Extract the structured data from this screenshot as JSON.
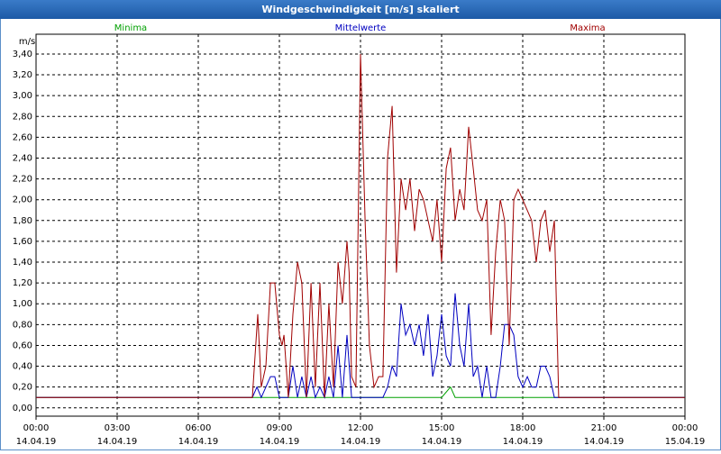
{
  "chart_data": {
    "type": "line",
    "title": "Windgeschwindigkeit [m/s] skaliert",
    "ylabel": "m/s",
    "xlim": [
      0,
      24
    ],
    "xticks": [
      {
        "value": 0,
        "label": [
          "00:00",
          "14.04.19"
        ]
      },
      {
        "value": 3,
        "label": [
          "03:00",
          "14.04.19"
        ]
      },
      {
        "value": 6,
        "label": [
          "06:00",
          "14.04.19"
        ]
      },
      {
        "value": 9,
        "label": [
          "09:00",
          "14.04.19"
        ]
      },
      {
        "value": 12,
        "label": [
          "12:00",
          "14.04.19"
        ]
      },
      {
        "value": 15,
        "label": [
          "15:00",
          "14.04.19"
        ]
      },
      {
        "value": 18,
        "label": [
          "18:00",
          "14.04.19"
        ]
      },
      {
        "value": 21,
        "label": [
          "21:00",
          "14.04.19"
        ]
      },
      {
        "value": 24,
        "label": [
          "00:00",
          "15.04.19"
        ]
      }
    ],
    "ylim": [
      -0.08,
      3.59
    ],
    "yticks": [
      {
        "value": 0,
        "label": "0,00"
      },
      {
        "value": 0.2,
        "label": "0,20"
      },
      {
        "value": 0.4,
        "label": "0,40"
      },
      {
        "value": 0.6,
        "label": "0,60"
      },
      {
        "value": 0.8,
        "label": "0,80"
      },
      {
        "value": 1.0,
        "label": "1,00"
      },
      {
        "value": 1.2,
        "label": "1,20"
      },
      {
        "value": 1.4,
        "label": "1,40"
      },
      {
        "value": 1.6,
        "label": "1,60"
      },
      {
        "value": 1.8,
        "label": "1,80"
      },
      {
        "value": 2.0,
        "label": "2,00"
      },
      {
        "value": 2.2,
        "label": "2,20"
      },
      {
        "value": 2.4,
        "label": "2,40"
      },
      {
        "value": 2.6,
        "label": "2,60"
      },
      {
        "value": 2.8,
        "label": "2,80"
      },
      {
        "value": 3.0,
        "label": "3,00"
      },
      {
        "value": 3.2,
        "label": "3,20"
      },
      {
        "value": 3.4,
        "label": "3,40"
      }
    ],
    "grid": true,
    "series": [
      {
        "name": "Minima",
        "color": "#00a000",
        "x": [
          0,
          15.0,
          15.33,
          15.5,
          24
        ],
        "values": [
          0.1,
          0.1,
          0.2,
          0.1,
          0.1
        ]
      },
      {
        "name": "Mittelwerte",
        "color": "#0000c0",
        "x": [
          0,
          8.0,
          8.17,
          8.33,
          8.5,
          8.67,
          8.83,
          9.0,
          9.33,
          9.5,
          9.67,
          9.83,
          10.0,
          10.17,
          10.33,
          10.5,
          10.67,
          10.83,
          11.0,
          11.17,
          11.33,
          11.5,
          11.67,
          12.0,
          12.33,
          12.67,
          12.83,
          13.0,
          13.17,
          13.33,
          13.5,
          13.67,
          13.83,
          14.0,
          14.17,
          14.33,
          14.5,
          14.67,
          14.83,
          15.0,
          15.17,
          15.33,
          15.5,
          15.67,
          15.83,
          16.0,
          16.17,
          16.33,
          16.5,
          16.67,
          16.83,
          17.0,
          17.17,
          17.33,
          17.5,
          17.67,
          17.83,
          18.0,
          18.17,
          18.33,
          18.5,
          18.67,
          18.83,
          19.0,
          19.17,
          24
        ],
        "values": [
          0.1,
          0.1,
          0.2,
          0.1,
          0.2,
          0.3,
          0.3,
          0.1,
          0.1,
          0.4,
          0.1,
          0.3,
          0.1,
          0.3,
          0.1,
          0.2,
          0.1,
          0.3,
          0.1,
          0.6,
          0.1,
          0.7,
          0.1,
          0.1,
          0.1,
          0.1,
          0.1,
          0.2,
          0.4,
          0.3,
          1.0,
          0.7,
          0.8,
          0.6,
          0.8,
          0.5,
          0.9,
          0.3,
          0.5,
          0.9,
          0.5,
          0.4,
          1.1,
          0.6,
          0.4,
          1.0,
          0.3,
          0.4,
          0.1,
          0.4,
          0.1,
          0.1,
          0.4,
          0.8,
          0.8,
          0.7,
          0.3,
          0.2,
          0.3,
          0.2,
          0.2,
          0.4,
          0.4,
          0.3,
          0.1,
          0.1
        ]
      },
      {
        "name": "Maxima",
        "color": "#a00000",
        "x": [
          0,
          8.0,
          8.2,
          8.33,
          8.5,
          8.67,
          8.83,
          9.0,
          9.1,
          9.17,
          9.33,
          9.5,
          9.67,
          9.83,
          10.0,
          10.17,
          10.33,
          10.5,
          10.67,
          10.83,
          11.0,
          11.17,
          11.33,
          11.5,
          11.58,
          11.67,
          11.83,
          12.0,
          12.17,
          12.33,
          12.5,
          12.67,
          12.83,
          13.0,
          13.17,
          13.33,
          13.5,
          13.67,
          13.83,
          14.0,
          14.17,
          14.33,
          14.5,
          14.67,
          14.83,
          15.0,
          15.17,
          15.33,
          15.5,
          15.67,
          15.83,
          16.0,
          16.17,
          16.33,
          16.5,
          16.67,
          16.83,
          17.0,
          17.17,
          17.33,
          17.5,
          17.67,
          17.83,
          18.0,
          18.33,
          18.5,
          18.67,
          18.83,
          19.0,
          19.17,
          19.33,
          24
        ],
        "values": [
          0.1,
          0.1,
          0.9,
          0.2,
          0.4,
          1.2,
          1.2,
          0.7,
          0.6,
          0.7,
          0.1,
          0.9,
          1.4,
          1.2,
          0.1,
          1.2,
          0.2,
          1.2,
          0.1,
          1.0,
          0.2,
          1.4,
          1.0,
          1.6,
          1.3,
          0.3,
          0.2,
          3.4,
          1.8,
          0.6,
          0.2,
          0.3,
          0.3,
          2.4,
          2.9,
          1.3,
          2.2,
          1.9,
          2.2,
          1.7,
          2.1,
          2.0,
          1.8,
          1.6,
          2.0,
          1.4,
          2.3,
          2.5,
          1.8,
          2.1,
          1.9,
          2.7,
          2.3,
          1.9,
          1.8,
          2.0,
          0.7,
          1.5,
          2.0,
          1.8,
          0.6,
          2.0,
          2.1,
          2.0,
          1.8,
          1.4,
          1.8,
          1.9,
          1.5,
          1.8,
          0.1,
          0.1
        ]
      }
    ]
  }
}
